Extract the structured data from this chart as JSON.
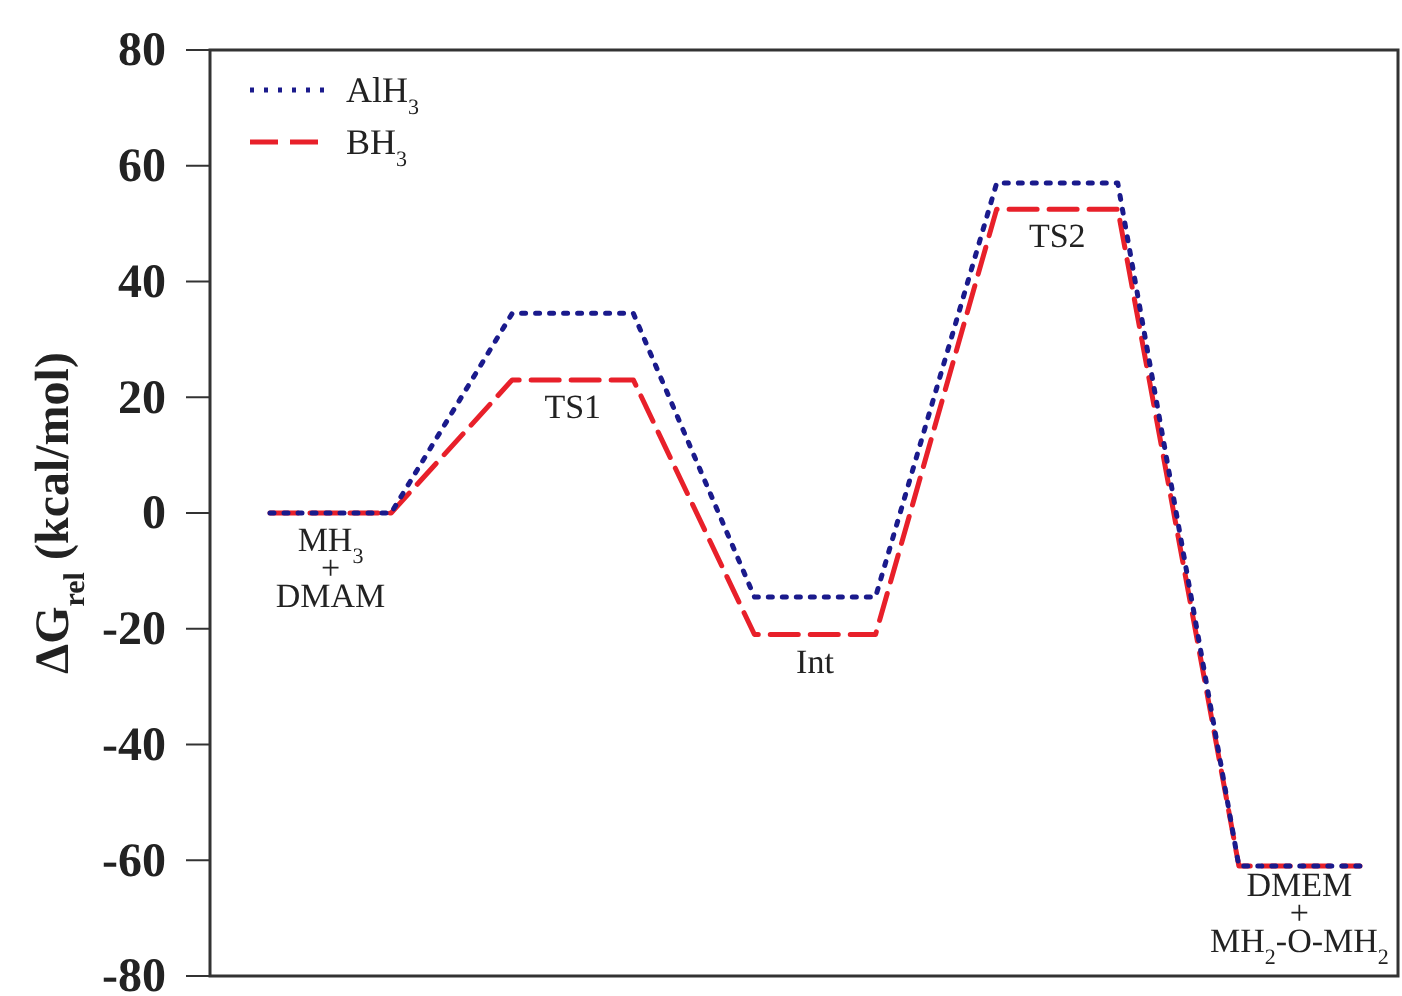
{
  "chart_data": {
    "type": "line",
    "ylabel": "ΔG$_{rel}$ (kcal/mol)",
    "categories": [
      null,
      null,
      null,
      null,
      null,
      null,
      null,
      null,
      null,
      null
    ],
    "series": [
      {
        "name": "AlH$_{3}$",
        "color": "#1a1a8c",
        "line_style": "dotted",
        "values": [
          0,
          0,
          34.5,
          34.5,
          -14.5,
          -14.5,
          57,
          57,
          -61,
          -61
        ]
      },
      {
        "name": "BH$_{3}$",
        "color": "#e8202a",
        "line_style": "dashed",
        "values": [
          0,
          0,
          23,
          23,
          -21,
          -21,
          52.5,
          52.5,
          -61,
          -61
        ]
      }
    ],
    "annotations": [
      "MH$_{3}$\n+\nDMAM",
      "TS1",
      "Int",
      "TS2",
      "DMEM\n+\nMH$_{2}$-O-MH$_{2}$"
    ],
    "ylim": [
      -80,
      80
    ],
    "yticks": [
      -80,
      -60,
      -40,
      -20,
      0,
      20,
      40,
      60,
      80
    ],
    "tick_labels": "y",
    "grid": false,
    "legend": "top left",
    "marker": "none"
  }
}
